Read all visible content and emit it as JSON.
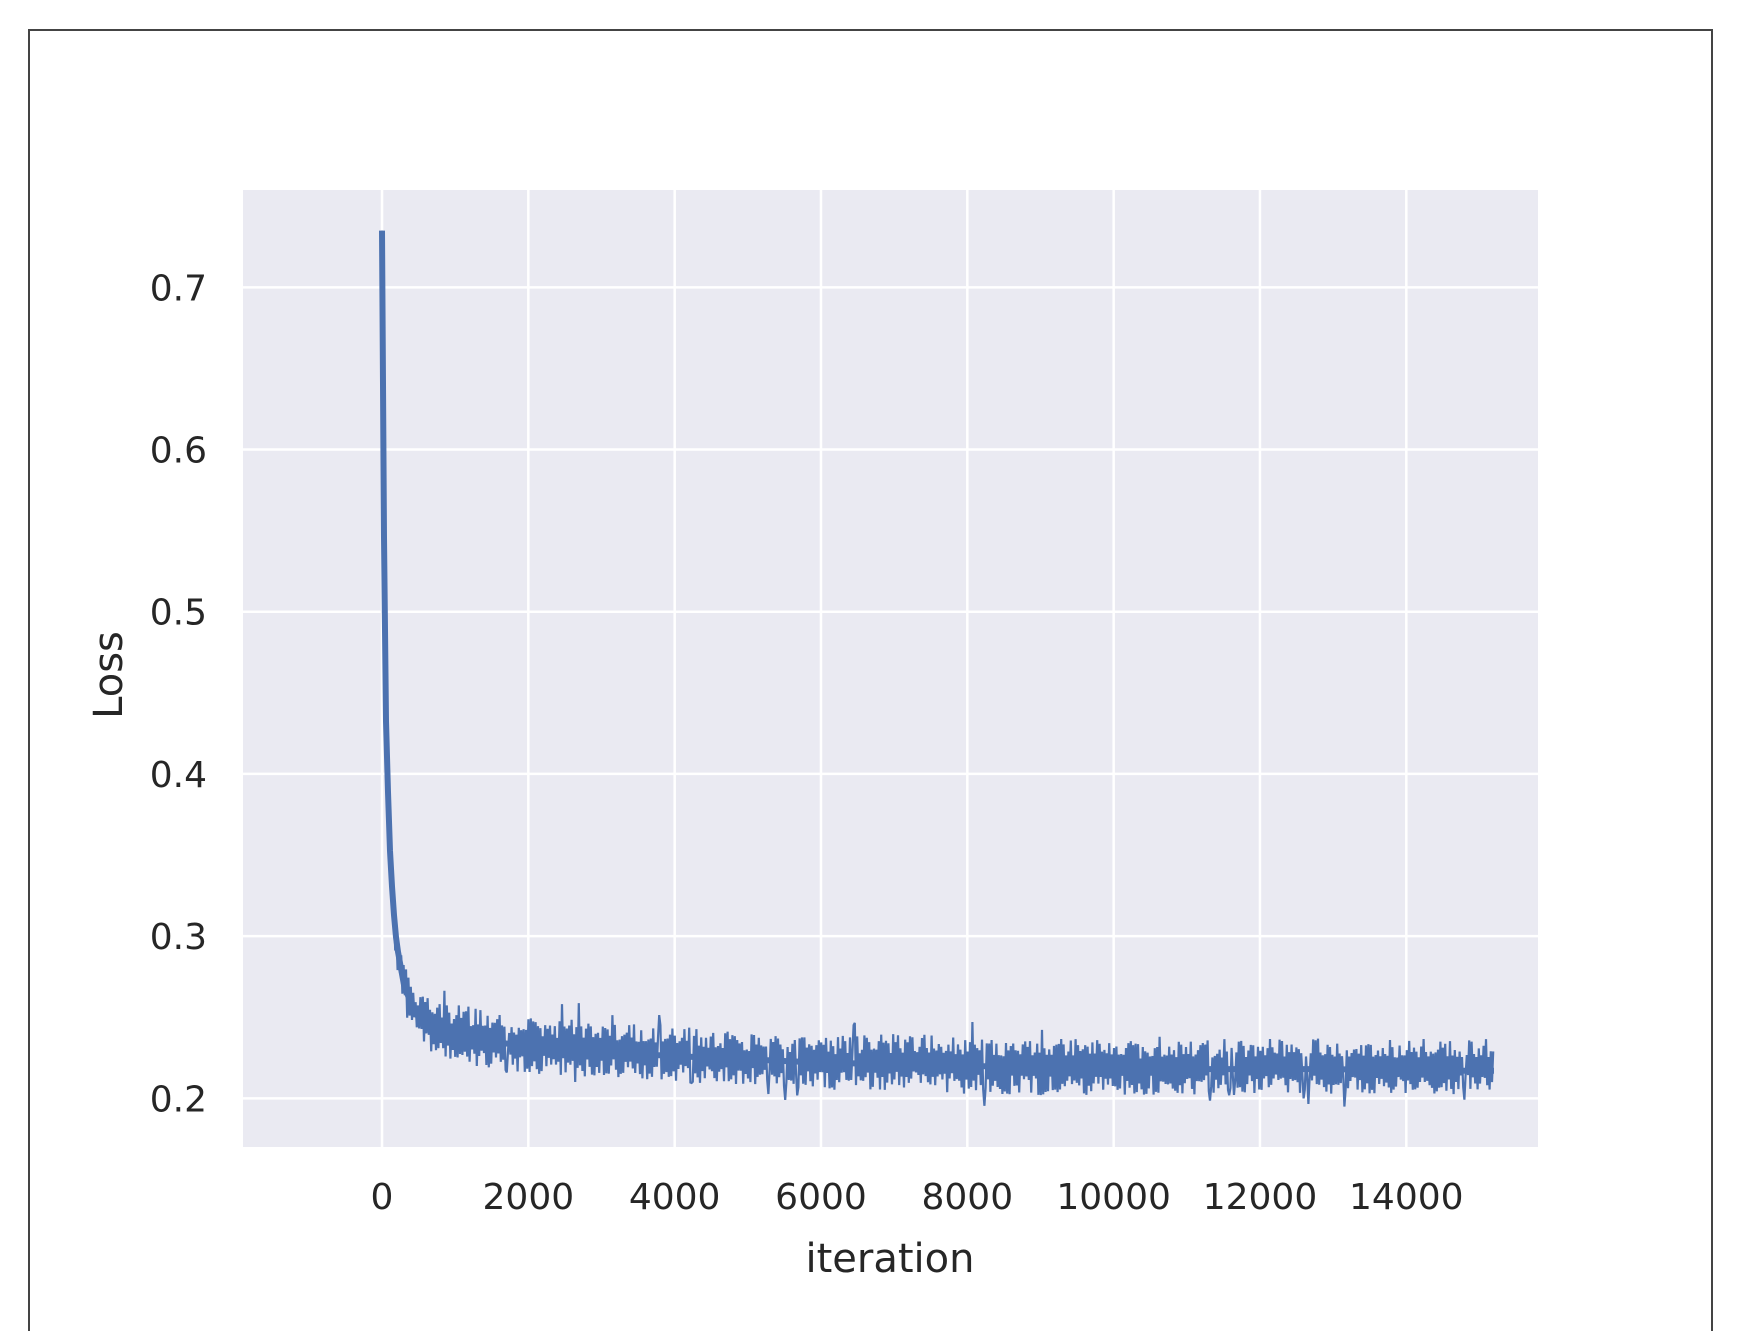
{
  "chart_data": {
    "type": "line",
    "title": "",
    "xlabel": "iteration",
    "ylabel": "Loss",
    "xlim": [
      -1900,
      15800
    ],
    "ylim": [
      0.17,
      0.76
    ],
    "x_ticks": [
      0,
      2000,
      4000,
      6000,
      8000,
      10000,
      12000,
      14000
    ],
    "x_tick_labels": [
      "0",
      "2000",
      "4000",
      "6000",
      "8000",
      "10000",
      "12000",
      "14000"
    ],
    "y_ticks": [
      0.2,
      0.3,
      0.4,
      0.5,
      0.6,
      0.7
    ],
    "y_tick_labels": [
      "0.2",
      "0.3",
      "0.4",
      "0.5",
      "0.6",
      "0.7"
    ],
    "grid": true,
    "legend": "none",
    "series": [
      {
        "color": "#4c72b0",
        "x": [
          0,
          20,
          50,
          100,
          150,
          200,
          300,
          400,
          500,
          700,
          1000,
          1500,
          2000,
          3000,
          4000,
          5000,
          6000,
          7000,
          8000,
          9000,
          10000,
          11000,
          12000,
          13000,
          14000,
          15200
        ],
        "y": [
          0.735,
          0.58,
          0.44,
          0.36,
          0.32,
          0.295,
          0.27,
          0.258,
          0.25,
          0.243,
          0.238,
          0.235,
          0.232,
          0.229,
          0.226,
          0.224,
          0.222,
          0.221,
          0.22,
          0.219,
          0.219,
          0.218,
          0.218,
          0.218,
          0.217,
          0.217
        ],
        "upper": [
          0.735,
          0.6,
          0.46,
          0.39,
          0.33,
          0.31,
          0.285,
          0.275,
          0.265,
          0.26,
          0.258,
          0.255,
          0.25,
          0.248,
          0.245,
          0.24,
          0.238,
          0.24,
          0.238,
          0.237,
          0.237,
          0.236,
          0.237,
          0.238,
          0.237,
          0.237
        ],
        "lower": [
          0.735,
          0.56,
          0.42,
          0.34,
          0.3,
          0.28,
          0.255,
          0.243,
          0.235,
          0.228,
          0.222,
          0.218,
          0.215,
          0.212,
          0.21,
          0.208,
          0.205,
          0.205,
          0.203,
          0.202,
          0.202,
          0.202,
          0.203,
          0.202,
          0.202,
          0.203
        ]
      }
    ]
  }
}
